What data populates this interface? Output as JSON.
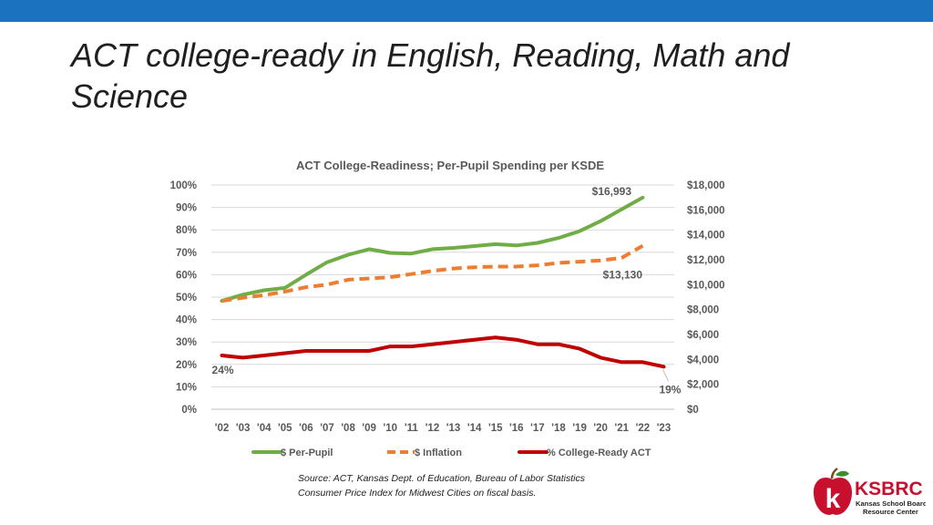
{
  "slide": {
    "title": "ACT college-ready in English, Reading, Math and Science",
    "source_line1": "Source: ACT, Kansas Dept. of Education, Bureau of Labor Statistics",
    "source_line2": "Consumer Price Index for Midwest Cities on fiscal basis.",
    "logo": {
      "name": "KSBRC",
      "subtitle_line1": "Kansas School Board",
      "subtitle_line2": "Resource Center"
    },
    "colors": {
      "topbar": "#1b73c0",
      "logo_red": "#c8102e"
    }
  },
  "chart_data": {
    "type": "line",
    "title": "ACT College-Readiness; Per-Pupil Spending per KSDE",
    "categories": [
      "'02",
      "'03",
      "'04",
      "'05",
      "'06",
      "'07",
      "'08",
      "'09",
      "'10",
      "'11",
      "'12",
      "'13",
      "'14",
      "'15",
      "'16",
      "'17",
      "'18",
      "'19",
      "'20",
      "'21",
      "'22",
      "'23"
    ],
    "left_axis": {
      "ticks": [
        "0%",
        "10%",
        "20%",
        "30%",
        "40%",
        "50%",
        "60%",
        "70%",
        "80%",
        "90%",
        "100%"
      ],
      "ylim": [
        0,
        100
      ]
    },
    "right_axis": {
      "ticks": [
        "$0",
        "$2,000",
        "$4,000",
        "$6,000",
        "$8,000",
        "$10,000",
        "$12,000",
        "$14,000",
        "$16,000",
        "$18,000"
      ],
      "ylim": [
        0,
        18000
      ]
    },
    "grid": true,
    "legend_position": "bottom",
    "series": [
      {
        "name": "$ Per-Pupil",
        "axis": "right",
        "style": "solid",
        "color": "#70ad47",
        "values": [
          8700,
          9200,
          9550,
          9750,
          10800,
          11800,
          12400,
          12850,
          12550,
          12500,
          12850,
          12950,
          13100,
          13250,
          13150,
          13350,
          13750,
          14300,
          15100,
          16050,
          16993,
          null
        ]
      },
      {
        "name": "$ Inflation",
        "axis": "right",
        "style": "dashed",
        "color": "#ed7d31",
        "values": [
          8700,
          8950,
          9150,
          9450,
          9800,
          10000,
          10400,
          10500,
          10600,
          10850,
          11100,
          11300,
          11400,
          11450,
          11450,
          11550,
          11750,
          11850,
          11950,
          12150,
          13130,
          null
        ]
      },
      {
        "name": "% College-Ready ACT",
        "axis": "left",
        "style": "solid",
        "color": "#c00000",
        "values": [
          24,
          23,
          24,
          25,
          26,
          26,
          26,
          26,
          28,
          28,
          29,
          30,
          31,
          32,
          31,
          29,
          29,
          27,
          23,
          21,
          21,
          19
        ]
      }
    ],
    "annotations": [
      {
        "text": "$16,993",
        "series": 0,
        "index": 20
      },
      {
        "text": "$13,130",
        "series": 1,
        "index": 20
      },
      {
        "text": "24%",
        "series": 2,
        "index": 0
      },
      {
        "text": "19%",
        "series": 2,
        "index": 21
      }
    ]
  }
}
